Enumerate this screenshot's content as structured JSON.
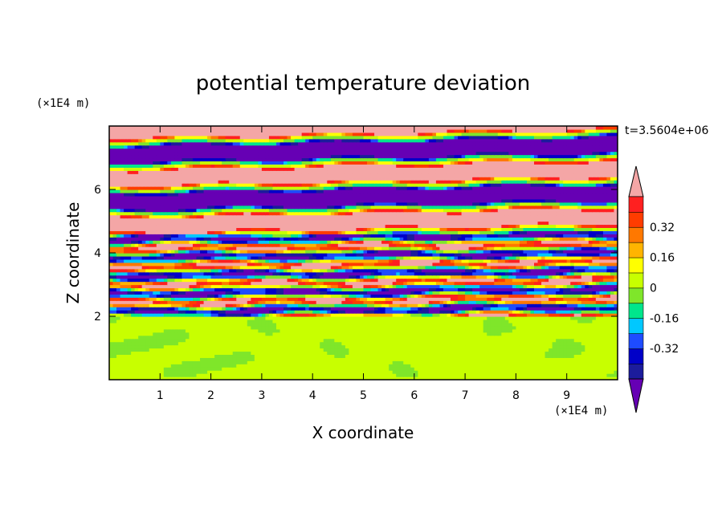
{
  "chart_data": {
    "type": "heatmap",
    "title": "potential temperature deviation",
    "xlabel": "X coordinate",
    "ylabel": "Z coordinate",
    "x_unit": "(×1E4 m)",
    "y_unit": "(×1E4 m)",
    "time_label": "t=3.5604e+06",
    "xlim": [
      0,
      10
    ],
    "ylim": [
      0,
      8
    ],
    "x_ticks": [
      "1",
      "2",
      "3",
      "4",
      "5",
      "6",
      "7",
      "8",
      "9"
    ],
    "y_ticks": [
      "2",
      "4",
      "6"
    ],
    "colorbar": {
      "labels": [
        "0.32",
        "0.16",
        "0",
        "-0.16",
        "-0.32"
      ],
      "label_values": [
        0.32,
        0.16,
        0,
        -0.16,
        -0.32
      ],
      "levels": [
        -0.48,
        -0.4,
        -0.32,
        -0.24,
        -0.16,
        -0.08,
        0,
        0.08,
        0.16,
        0.24,
        0.32,
        0.4,
        0.48
      ],
      "colors": [
        "#1c1c9c",
        "#0000c8",
        "#1e4cff",
        "#00c8ff",
        "#00e68c",
        "#7fe62a",
        "#c8ff00",
        "#ffff00",
        "#ffb400",
        "#ff7800",
        "#ff3c00",
        "#ff2020"
      ],
      "under_color": "#6600b4",
      "over_color": "#f4a6a6"
    }
  }
}
